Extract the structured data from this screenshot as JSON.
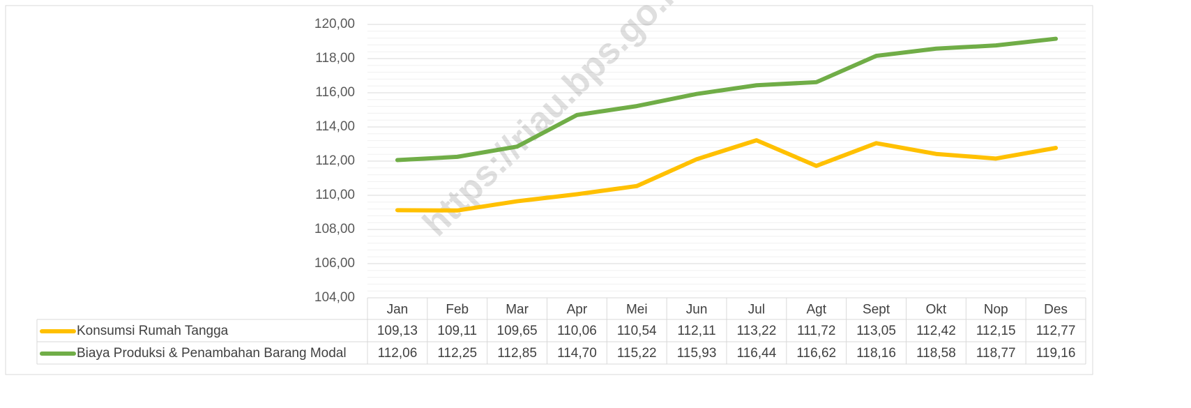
{
  "chart_data": {
    "type": "line",
    "watermark": "https://riau.bps.go.id",
    "categories": [
      "Jan",
      "Feb",
      "Mar",
      "Apr",
      "Mei",
      "Jun",
      "Jul",
      "Agt",
      "Sept",
      "Okt",
      "Nop",
      "Des"
    ],
    "series": [
      {
        "name": "Konsumsi Rumah Tangga",
        "color": "#ffc000",
        "values": [
          109.13,
          109.11,
          109.65,
          110.06,
          110.54,
          112.11,
          113.22,
          111.72,
          113.05,
          112.42,
          112.15,
          112.77
        ],
        "value_labels": [
          "109,13",
          "109,11",
          "109,65",
          "110,06",
          "110,54",
          "112,11",
          "113,22",
          "111,72",
          "113,05",
          "112,42",
          "112,15",
          "112,77"
        ]
      },
      {
        "name": "Biaya Produksi & Penambahan Barang Modal",
        "color": "#70ad47",
        "values": [
          112.06,
          112.25,
          112.85,
          114.7,
          115.22,
          115.93,
          116.44,
          116.62,
          118.16,
          118.58,
          118.77,
          119.16
        ],
        "value_labels": [
          "112,06",
          "112,25",
          "112,85",
          "114,70",
          "115,22",
          "115,93",
          "116,44",
          "116,62",
          "118,16",
          "118,58",
          "118,77",
          "119,16"
        ]
      }
    ],
    "ylim": [
      104,
      120
    ],
    "yticks": [
      {
        "value": 104,
        "label": "104,00"
      },
      {
        "value": 106,
        "label": "106,00"
      },
      {
        "value": 108,
        "label": "108,00"
      },
      {
        "value": 110,
        "label": "110,00"
      },
      {
        "value": 112,
        "label": "112,00"
      },
      {
        "value": 114,
        "label": "114,00"
      },
      {
        "value": 116,
        "label": "116,00"
      },
      {
        "value": 118,
        "label": "118,00"
      },
      {
        "value": 120,
        "label": "120,00"
      }
    ],
    "grid": true
  }
}
